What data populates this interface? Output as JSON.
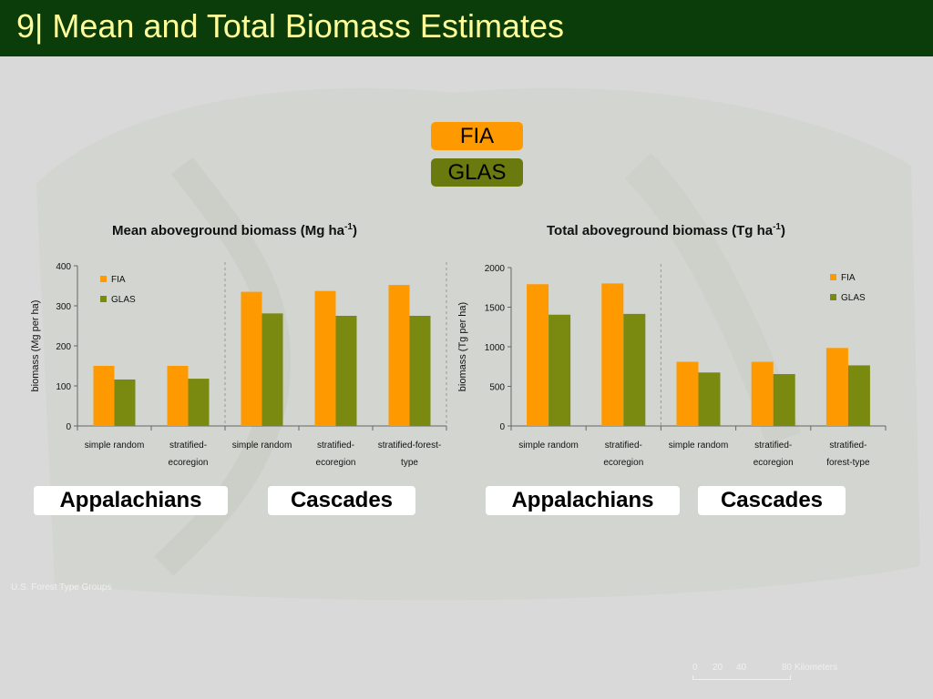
{
  "page": {
    "title": "9| Mean and Total Biomass Estimates"
  },
  "legend_boxes": {
    "fia": "FIA",
    "glas": "GLAS"
  },
  "colors": {
    "fia": "#ff9900",
    "glas": "#7a8a10",
    "title_bar": "#0b3d0b",
    "title_text": "#ffff99"
  },
  "region_labels": [
    "Appalachians",
    "Cascades",
    "Appalachians",
    "Cascades"
  ],
  "background_legend": {
    "heading": "U.S. Forest Type Groups",
    "scale_ticks": [
      "0",
      "20",
      "40",
      "80 Kilometers"
    ]
  },
  "chart_data": [
    {
      "type": "bar",
      "title": "Mean aboveground biomass (Mg ha",
      "title_sup": "-1",
      "title_end": ")",
      "ylabel": "biomass (Mg per ha)",
      "ylim": [
        0,
        400
      ],
      "yticks": [
        "0",
        "100",
        "200",
        "300",
        "400"
      ],
      "categories": [
        [
          "simple random"
        ],
        [
          "stratified-",
          "ecoregion"
        ],
        [
          "simple random"
        ],
        [
          "stratified-",
          "ecoregion"
        ],
        [
          "stratified-forest-",
          "type"
        ]
      ],
      "series": [
        {
          "name": "FIA",
          "values": [
            150,
            150,
            335,
            337,
            352
          ]
        },
        {
          "name": "GLAS",
          "values": [
            116,
            118,
            281,
            275,
            275
          ]
        }
      ],
      "legend_position": "top-left",
      "group_dividers_after": [
        2
      ]
    },
    {
      "type": "bar",
      "title": "Total aboveground biomass (Tg  ha",
      "title_sup": "-1",
      "title_end": ")",
      "ylabel": "biomass (Tg per ha)",
      "ylim": [
        0,
        2000
      ],
      "yticks": [
        "0",
        "500",
        "1000",
        "1500",
        "2000"
      ],
      "categories": [
        [
          "simple random"
        ],
        [
          "stratified-",
          "ecoregion"
        ],
        [
          "simple random"
        ],
        [
          "stratified-",
          "ecoregion"
        ],
        [
          "stratified-",
          "forest-type"
        ]
      ],
      "series": [
        {
          "name": "FIA",
          "values": [
            1790,
            1800,
            810,
            810,
            985
          ]
        },
        {
          "name": "GLAS",
          "values": [
            1405,
            1415,
            675,
            655,
            765
          ]
        }
      ],
      "legend_position": "top-right",
      "group_dividers_after": [
        2
      ]
    }
  ]
}
